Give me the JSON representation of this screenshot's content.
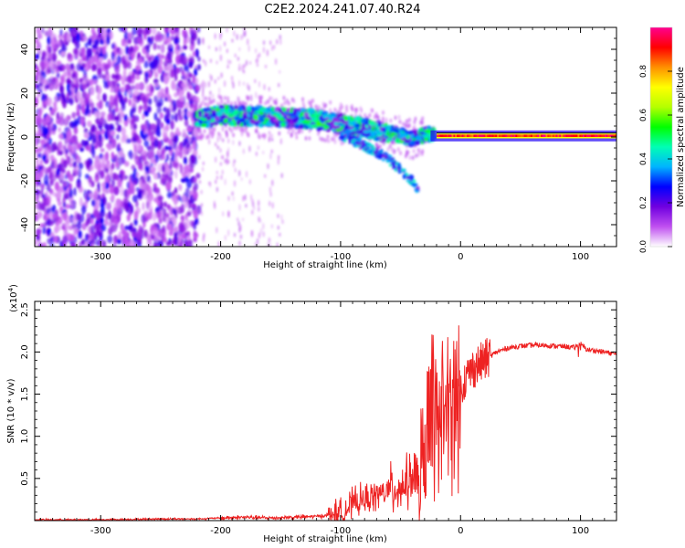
{
  "title": "C2E2.2024.241.07.40.R24",
  "chart_data": [
    {
      "type": "heatmap",
      "xlabel": "Height of straight line (km)",
      "ylabel": "Frequency (Hz)",
      "xlim": [
        -355,
        130
      ],
      "ylim": [
        -50,
        50
      ],
      "xticks": [
        -300,
        -200,
        -100,
        0,
        100
      ],
      "yticks": [
        -40,
        -20,
        0,
        20,
        40
      ],
      "colorbar": {
        "label": "Normalized spectral amplitude",
        "range": [
          0,
          1
        ],
        "ticks": [
          0.0,
          0.2,
          0.4,
          0.6,
          0.8
        ],
        "colors": [
          "#ffffff",
          "#c050f0",
          "#7000e0",
          "#0000ff",
          "#00b4ff",
          "#00ffb4",
          "#00ff00",
          "#b4ff00",
          "#ffff00",
          "#ff9000",
          "#ff0000",
          "#ff0090"
        ]
      },
      "ridge": [
        [
          -220,
          8
        ],
        [
          -200,
          10
        ],
        [
          -150,
          9
        ],
        [
          -120,
          8
        ],
        [
          -100,
          6
        ],
        [
          -80,
          4
        ],
        [
          -60,
          2
        ],
        [
          -40,
          -1
        ],
        [
          -30,
          1
        ],
        [
          -20,
          1
        ],
        [
          0,
          0.5
        ],
        [
          130,
          0.5
        ]
      ],
      "lower_branch": [
        [
          -100,
          1
        ],
        [
          -80,
          -4
        ],
        [
          -60,
          -10
        ],
        [
          -50,
          -15
        ],
        [
          -40,
          -20
        ],
        [
          -35,
          -25
        ]
      ],
      "grid": false
    },
    {
      "type": "line",
      "xlabel": "Height of straight line (km)",
      "ylabel": "SNR (10 * v/v)",
      "y_multiplier": "(x10",
      "y_exponent": "4",
      "xlim": [
        -355,
        130
      ],
      "ylim": [
        0,
        2.6
      ],
      "xticks": [
        -300,
        -200,
        -100,
        0,
        100
      ],
      "yticks": [
        0.5,
        1.0,
        1.5,
        2.0,
        2.5
      ],
      "yticklabels": [
        "0.5",
        "1.0",
        "1.5",
        "2.0",
        "2.5"
      ],
      "color": "#ee2222",
      "series": [
        {
          "x": [
            -355,
            -300,
            -250,
            -220,
            -200,
            -180,
            -160,
            -140,
            -120,
            -100,
            -90,
            -80,
            -70,
            -60,
            -50,
            -40,
            -35,
            -30,
            -25,
            -20,
            -15,
            -10,
            -5,
            0,
            5,
            10,
            15,
            20,
            25,
            30,
            40,
            50,
            60,
            70,
            80,
            90,
            95,
            100,
            105,
            110,
            120,
            130
          ],
          "y": [
            0.01,
            0.01,
            0.02,
            0.02,
            0.03,
            0.04,
            0.03,
            0.04,
            0.05,
            0.08,
            0.2,
            0.25,
            0.3,
            0.35,
            0.4,
            0.5,
            0.6,
            0.9,
            1.3,
            1.4,
            1.45,
            1.5,
            1.55,
            1.6,
            1.7,
            1.8,
            1.85,
            1.9,
            1.95,
            2.0,
            2.05,
            2.07,
            2.08,
            2.08,
            2.07,
            2.06,
            2.05,
            2.1,
            2.03,
            2.02,
            2.0,
            1.97
          ]
        }
      ],
      "grid": false
    }
  ]
}
